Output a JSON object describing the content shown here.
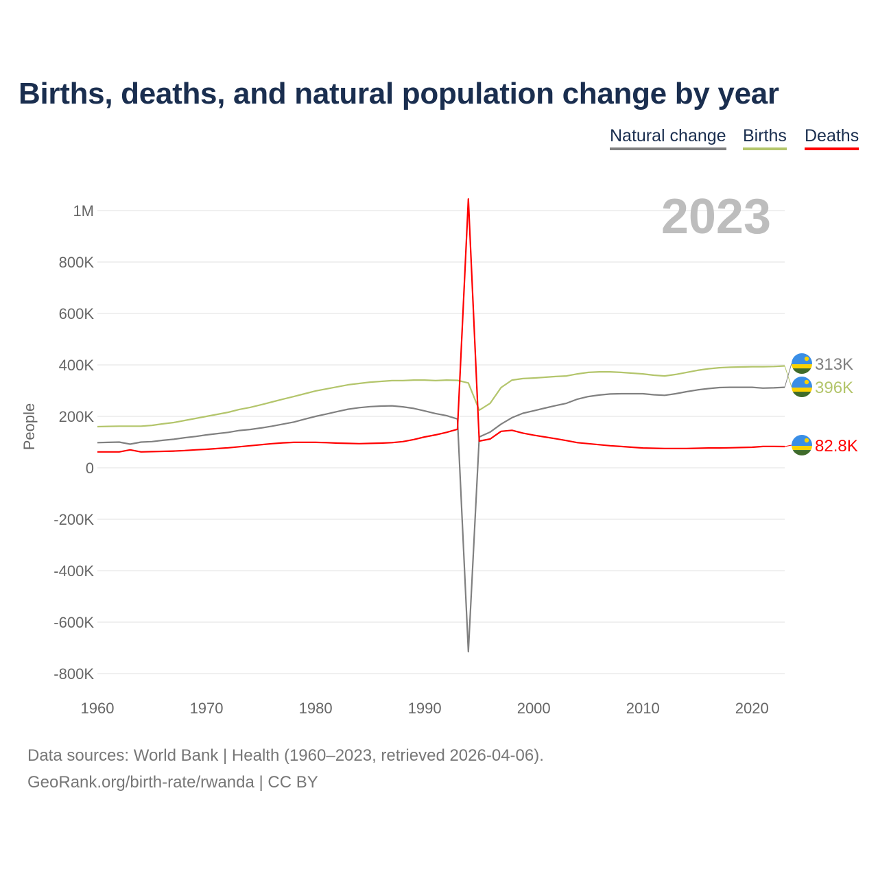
{
  "title": "Births, deaths, and natural population change by year",
  "legend": [
    {
      "label": "Natural change",
      "color": "#808080"
    },
    {
      "label": "Births",
      "color": "#b3c56b"
    },
    {
      "label": "Deaths",
      "color": "#ff0000"
    }
  ],
  "year_watermark": "2023",
  "footer": {
    "line1": "Data sources: World Bank | Health (1960–2023, retrieved 2026-04-06).",
    "line2": "GeoRank.org/birth-rate/rwanda | CC BY"
  },
  "chart_data": {
    "type": "line",
    "title": "Births, deaths, and natural population change by year",
    "xlabel": "",
    "ylabel": "People",
    "xlim": [
      1960,
      2023
    ],
    "ylim": [
      -800000,
      1000000
    ],
    "grid": true,
    "legend_position": "top-right",
    "x_ticks": [
      1960,
      1970,
      1980,
      1990,
      2000,
      2010,
      2020
    ],
    "x_tick_labels": [
      "1960",
      "1970",
      "1980",
      "1990",
      "2000",
      "2010",
      "2020"
    ],
    "y_ticks": [
      -800000,
      -600000,
      -400000,
      -200000,
      0,
      200000,
      400000,
      600000,
      800000,
      1000000
    ],
    "y_tick_labels": [
      "-800K",
      "-600K",
      "-400K",
      "-200K",
      "0",
      "200K",
      "400K",
      "600K",
      "800K",
      "1M"
    ],
    "x_start": 1960,
    "series": [
      {
        "name": "Natural change",
        "color": "#808080",
        "end_label": "313K",
        "unit": 1000,
        "values": [
          98,
          99,
          100,
          92,
          100,
          102,
          107,
          111,
          117,
          122,
          128,
          133,
          138,
          145,
          149,
          155,
          162,
          170,
          178,
          189,
          200,
          209,
          219,
          228,
          234,
          238,
          240,
          241,
          237,
          231,
          221,
          211,
          203,
          190,
          -715,
          120,
          139,
          170,
          195,
          212,
          222,
          232,
          242,
          251,
          267,
          277,
          283,
          287,
          288,
          288,
          288,
          284,
          282,
          288,
          296,
          303,
          308,
          312,
          313,
          313,
          313,
          310,
          311,
          313
        ]
      },
      {
        "name": "Births",
        "color": "#b3c56b",
        "end_label": "396K",
        "unit": 1000,
        "values": [
          160,
          161,
          162,
          162,
          162,
          165,
          171,
          176,
          184,
          192,
          200,
          208,
          216,
          227,
          235,
          245,
          256,
          267,
          277,
          288,
          299,
          307,
          315,
          323,
          328,
          333,
          336,
          339,
          339,
          341,
          341,
          339,
          341,
          340,
          330,
          224,
          251,
          312,
          341,
          347,
          349,
          352,
          355,
          357,
          365,
          371,
          373,
          373,
          371,
          368,
          365,
          360,
          357,
          363,
          371,
          379,
          385,
          389,
          391,
          392,
          393,
          393,
          394,
          396
        ]
      },
      {
        "name": "Deaths",
        "color": "#ff0000",
        "end_label": "82.8K",
        "unit": 1000,
        "values": [
          62,
          62,
          62,
          70,
          62,
          63,
          64,
          65,
          67,
          70,
          72,
          75,
          78,
          82,
          86,
          90,
          94,
          97,
          99,
          99,
          99,
          98,
          96,
          95,
          94,
          95,
          96,
          98,
          102,
          110,
          120,
          128,
          138,
          150,
          1045,
          104,
          112,
          142,
          146,
          135,
          127,
          120,
          113,
          106,
          98,
          94,
          90,
          86,
          83,
          80,
          77,
          76,
          75,
          75,
          75,
          76,
          77,
          77,
          78,
          79,
          80,
          83,
          83,
          82.8
        ]
      }
    ]
  }
}
